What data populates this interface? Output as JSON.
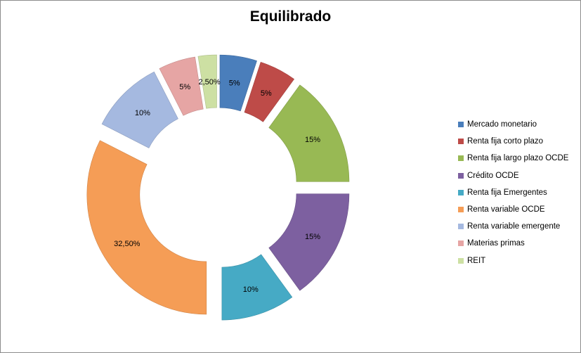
{
  "chart_data": {
    "type": "donut",
    "title": "Equilibrado",
    "categories": [
      "Mercado monetario",
      "Renta fija corto plazo",
      "Renta fija largo plazo OCDE",
      "Crédito OCDE",
      "Renta fija Emergentes",
      "Renta variable OCDE",
      "Renta variable emergente",
      "Materias primas",
      "REIT"
    ],
    "values": [
      5,
      5,
      15,
      15,
      10,
      32.5,
      10,
      5,
      2.5
    ],
    "value_labels": [
      "5%",
      "5%",
      "15%",
      "15%",
      "10%",
      "32,50%",
      "10%",
      "5%",
      "2,50%"
    ],
    "colors": [
      "#4a7ebb",
      "#be4b48",
      "#98b954",
      "#7d60a0",
      "#46aac5",
      "#f59d56",
      "#a5b9e0",
      "#e6a5a4",
      "#cde0a3"
    ],
    "exploded": true,
    "legend_position": "right"
  }
}
